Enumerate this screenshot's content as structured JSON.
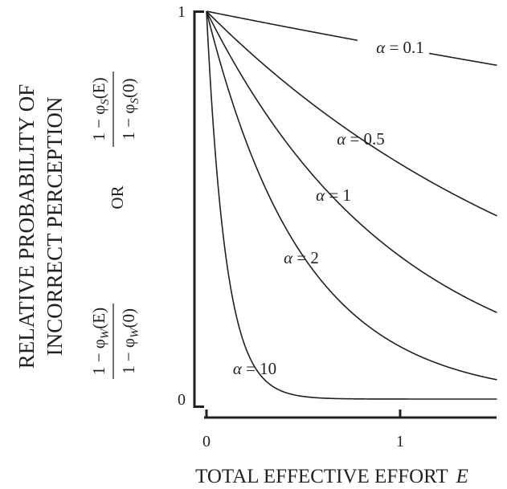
{
  "chart_data": {
    "type": "line",
    "function": "exp(-alpha * E)",
    "xlabel": "TOTAL EFFECTIVE EFFORT",
    "xlabel_var": "E",
    "ylabel_lines": [
      "RELATIVE PROBABILITY OF",
      "INCORRECT PERCEPTION"
    ],
    "ylabel_formula_w": {
      "num": "1 − φ",
      "num_sub": "W",
      "num_arg": "(E)",
      "den": "1 − φ",
      "den_sub": "W",
      "den_arg": "(0)"
    },
    "ylabel_or": "OR",
    "ylabel_formula_s": {
      "num": "1 − φ",
      "num_sub": "S",
      "num_arg": "(E)",
      "den": "1 − φ",
      "den_sub": "S",
      "den_arg": "(0)"
    },
    "xlim": [
      0,
      1.5
    ],
    "ylim": [
      0,
      1
    ],
    "x_ticks": [
      {
        "value": 0,
        "label": "0"
      },
      {
        "value": 1,
        "label": "1"
      }
    ],
    "y_ticks": [
      {
        "value": 0,
        "label": "0"
      },
      {
        "value": 1,
        "label": "1"
      }
    ],
    "grid": false,
    "legend": "none",
    "series": [
      {
        "alpha": 0.1,
        "label": "α = 0.1",
        "x": [
          0,
          0.25,
          0.5,
          0.75,
          1.0,
          1.25,
          1.5
        ],
        "values": [
          1.0,
          0.975,
          0.951,
          0.928,
          0.905,
          0.882,
          0.861
        ]
      },
      {
        "alpha": 0.5,
        "label": "α = 0.5",
        "x": [
          0,
          0.25,
          0.5,
          0.75,
          1.0,
          1.25,
          1.5
        ],
        "values": [
          1.0,
          0.882,
          0.779,
          0.687,
          0.607,
          0.535,
          0.472
        ]
      },
      {
        "alpha": 1,
        "label": "α = 1",
        "x": [
          0,
          0.25,
          0.5,
          0.75,
          1.0,
          1.25,
          1.5
        ],
        "values": [
          1.0,
          0.779,
          0.607,
          0.472,
          0.368,
          0.287,
          0.223
        ]
      },
      {
        "alpha": 2,
        "label": "α = 2",
        "x": [
          0,
          0.25,
          0.5,
          0.75,
          1.0,
          1.25,
          1.5
        ],
        "values": [
          1.0,
          0.607,
          0.368,
          0.223,
          0.135,
          0.082,
          0.05
        ]
      },
      {
        "alpha": 10,
        "label": "α = 10",
        "x": [
          0,
          0.1,
          0.2,
          0.3,
          0.4,
          0.5,
          1.0,
          1.5
        ],
        "values": [
          1.0,
          0.368,
          0.135,
          0.05,
          0.018,
          0.007,
          0.0,
          0.0
        ]
      }
    ]
  }
}
